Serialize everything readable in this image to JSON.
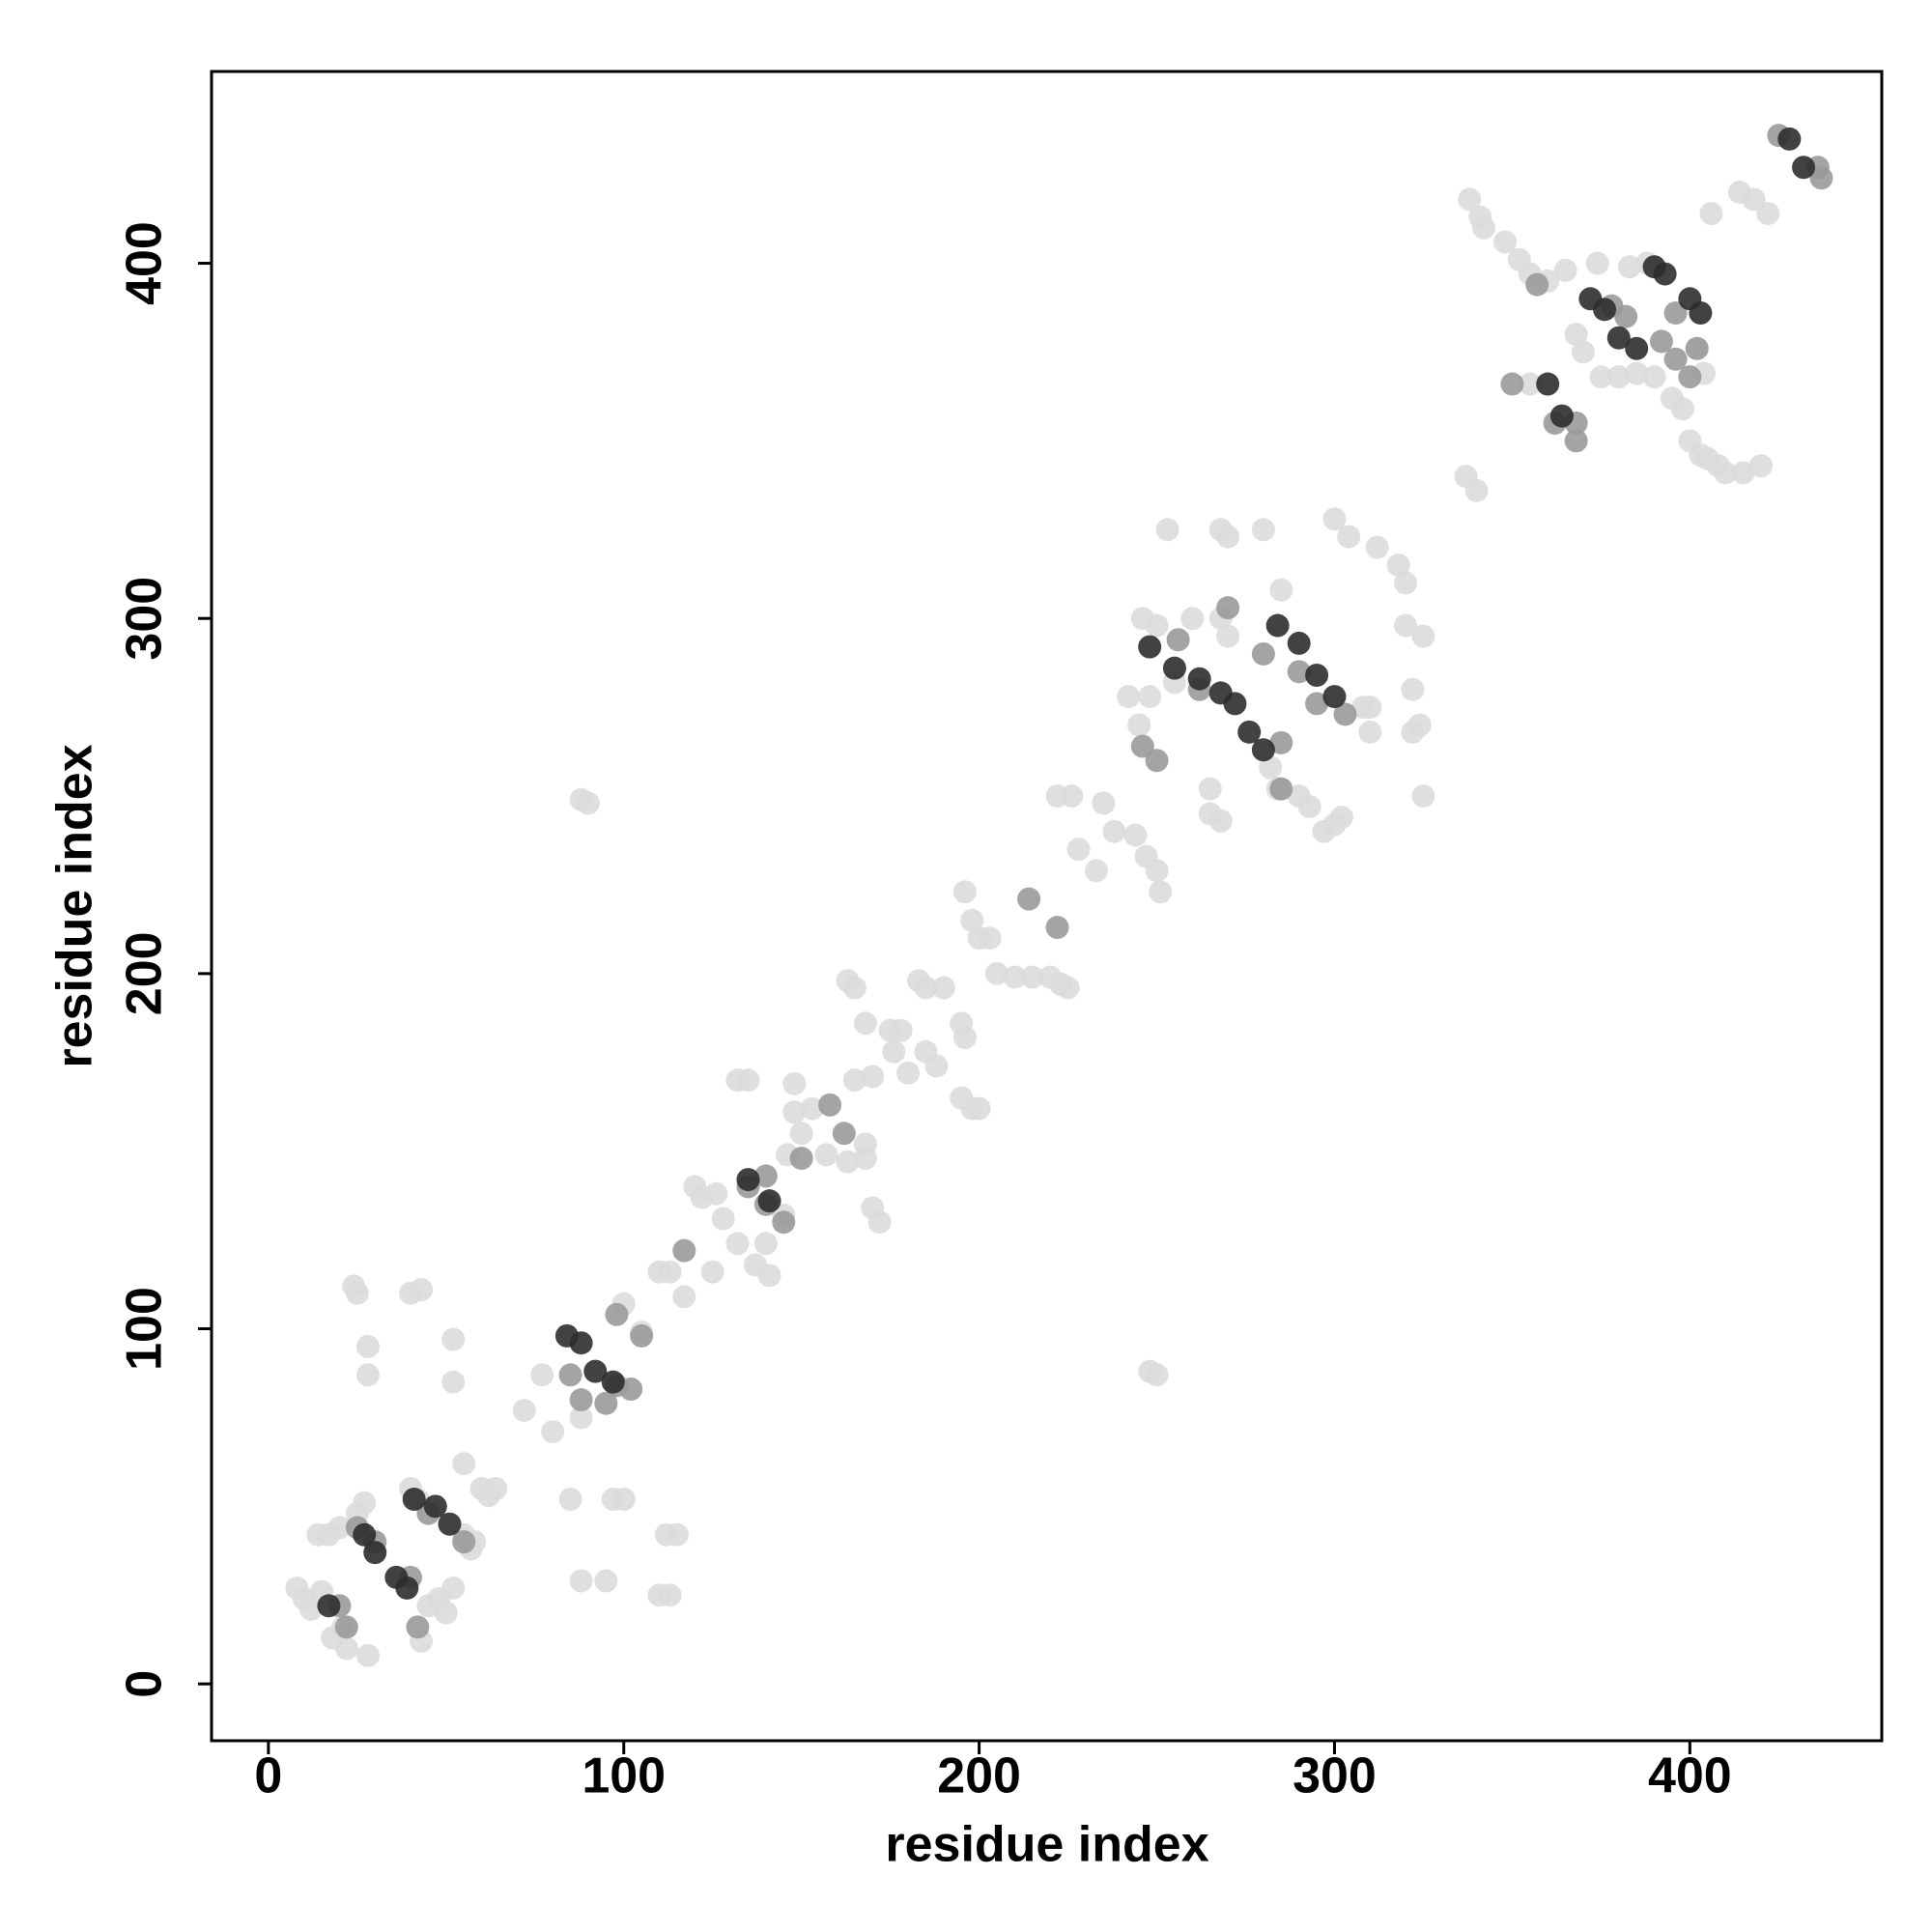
{
  "chart_data": {
    "type": "scatter",
    "xlabel": "residue index",
    "ylabel": "residue index",
    "xlim": [
      -16,
      454
    ],
    "ylim": [
      -16,
      454
    ],
    "xticks": [
      0,
      100,
      200,
      300,
      400
    ],
    "yticks": [
      0,
      100,
      200,
      300,
      400
    ],
    "grid": false,
    "series": [
      {
        "color": "#dcdcdc",
        "x": [
          8,
          12,
          15,
          18,
          22,
          25,
          27,
          28,
          21,
          24,
          25,
          28,
          28,
          40,
          42,
          40,
          43,
          43,
          45,
          48,
          52,
          52,
          52,
          55,
          57,
          60,
          62,
          64,
          50,
          14,
          17,
          10,
          20,
          55,
          58,
          72,
          77,
          80,
          85,
          88,
          88,
          95,
          97,
          100,
          100,
          105,
          110,
          113,
          110,
          112,
          115,
          113,
          117,
          120,
          122,
          125,
          126,
          128,
          132,
          135,
          132,
          137,
          140,
          141,
          145,
          146,
          148,
          148,
          150,
          153,
          157,
          163,
          165,
          165,
          168,
          170,
          168,
          163,
          168,
          170,
          172,
          175,
          176,
          178,
          180,
          183,
          185,
          188,
          185,
          190,
          195,
          196,
          195,
          198,
          200,
          196,
          198,
          200,
          203,
          205,
          210,
          215,
          220,
          223,
          225,
          222,
          226,
          228,
          233,
          235,
          238,
          242,
          245,
          244,
          248,
          247,
          250,
          251,
          248,
          250,
          88,
          90,
          253,
          268,
          270,
          268,
          265,
          268,
          265,
          280,
          282,
          284,
          300,
          304,
          308,
          310,
          312,
          318,
          320,
          320,
          322,
          322,
          325,
          325,
          324,
          337,
          340,
          338,
          341,
          342,
          348,
          352,
          355,
          355,
          360,
          365,
          368,
          370,
          374,
          375,
          380,
          383,
          388,
          390,
          385,
          395,
          398,
          400,
          403,
          405,
          402,
          404,
          408,
          410,
          414,
          418,
          406,
          415,
          420,
          422,
          246,
          250,
          255,
          260,
          270,
          285,
          297,
          300,
          302,
          310,
          290,
          293
        ],
        "values": [
          27,
          21,
          26,
          13,
          10,
          48,
          51,
          8,
          16,
          112,
          110,
          95,
          87,
          55,
          52,
          110,
          111,
          12,
          22,
          24,
          27,
          97,
          85,
          62,
          38,
          55,
          53,
          55,
          20,
          42,
          42,
          24,
          44,
          42,
          40,
          77,
          87,
          71,
          52,
          75,
          29,
          29,
          52,
          52,
          107,
          99,
          116,
          116,
          25,
          42,
          42,
          25,
          109,
          140,
          137,
          116,
          138,
          131,
          170,
          170,
          124,
          118,
          124,
          115,
          132,
          149,
          169,
          161,
          155,
          162,
          149,
          198,
          196,
          170,
          186,
          171,
          152,
          147,
          148,
          134,
          130,
          184,
          178,
          184,
          172,
          198,
          178,
          174,
          196,
          196,
          186,
          182,
          165,
          162,
          162,
          223,
          215,
          210,
          210,
          200,
          199,
          199,
          199,
          197,
          196,
          250,
          250,
          235,
          229,
          248,
          240,
          278,
          270,
          239,
          278,
          233,
          229,
          223,
          88,
          87,
          249,
          248,
          325,
          325,
          323,
          300,
          245,
          243,
          252,
          325,
          258,
          252,
          328,
          323,
          275,
          268,
          320,
          315,
          310,
          298,
          280,
          268,
          250,
          295,
          270,
          340,
          336,
          418,
          413,
          410,
          406,
          401,
          397,
          366,
          395,
          398,
          380,
          375,
          400,
          368,
          368,
          399,
          400,
          368,
          369,
          362,
          359,
          350,
          346,
          345,
          376,
          369,
          343,
          341,
          420,
          418,
          414,
          341,
          343,
          414,
          300,
          298,
          282,
          300,
          295,
          308,
          240,
          242,
          244,
          275,
          250,
          247
        ]
      },
      {
        "color": "#9a9a9a",
        "x": [
          20,
          22,
          25,
          30,
          40,
          42,
          45,
          55,
          85,
          88,
          95,
          98,
          102,
          98,
          105,
          117,
          135,
          140,
          140,
          145,
          150,
          158,
          162,
          214,
          222,
          246,
          250,
          256,
          262,
          270,
          280,
          290,
          295,
          303,
          285,
          285,
          350,
          357,
          362,
          368,
          368,
          378,
          382,
          392,
          396,
          400,
          396,
          402,
          425,
          436,
          437
        ],
        "values": [
          22,
          16,
          44,
          40,
          30,
          16,
          48,
          40,
          87,
          80,
          79,
          84,
          83,
          104,
          98,
          122,
          140,
          135,
          143,
          130,
          148,
          163,
          155,
          221,
          213,
          264,
          260,
          294,
          280,
          303,
          290,
          285,
          276,
          273,
          265,
          252,
          366,
          394,
          355,
          355,
          350,
          388,
          385,
          378,
          386,
          368,
          373,
          376,
          436,
          427,
          424
        ]
      },
      {
        "color": "#2e2e2e",
        "x": [
          17,
          27,
          30,
          36,
          39,
          41,
          47,
          51,
          84,
          88,
          92,
          97,
          135,
          141,
          248,
          255,
          262,
          268,
          272,
          276,
          280,
          284,
          290,
          295,
          300,
          372,
          376,
          380,
          385,
          390,
          393,
          400,
          403,
          360,
          364,
          428,
          432
        ],
        "values": [
          22,
          42,
          37,
          30,
          27,
          52,
          50,
          45,
          98,
          96,
          88,
          85,
          142,
          136,
          292,
          286,
          283,
          279,
          276,
          268,
          263,
          298,
          293,
          284,
          278,
          390,
          387,
          379,
          376,
          399,
          397,
          390,
          386,
          366,
          357,
          435,
          427
        ]
      }
    ]
  }
}
